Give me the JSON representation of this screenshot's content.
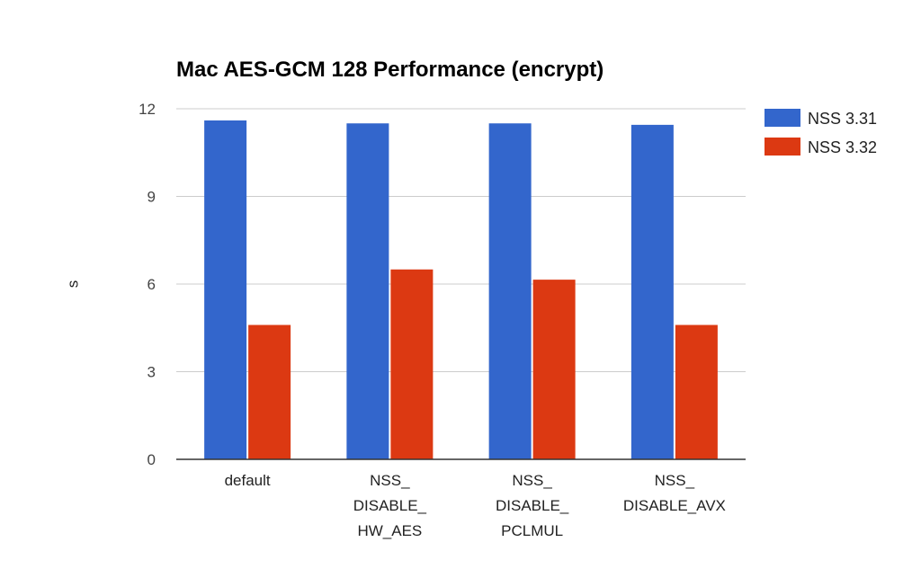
{
  "chart_data": {
    "type": "bar",
    "title": "Mac AES-GCM 128 Performance (encrypt)",
    "xlabel": "",
    "ylabel": "s",
    "ylim": [
      0,
      12
    ],
    "yticks": [
      "0",
      "3",
      "6",
      "9",
      "12"
    ],
    "grid": true,
    "legend_position": "right",
    "categories": [
      [
        "default"
      ],
      [
        "NSS_",
        "DISABLE_",
        "HW_AES"
      ],
      [
        "NSS_",
        "DISABLE_",
        "PCLMUL"
      ],
      [
        "NSS_",
        "DISABLE_AVX"
      ]
    ],
    "series": [
      {
        "name": "NSS 3.31",
        "color": "#3366cc",
        "values": [
          11.6,
          11.5,
          11.5,
          11.45
        ]
      },
      {
        "name": "NSS 3.32",
        "color": "#dc3912",
        "values": [
          4.6,
          6.5,
          6.15,
          4.6
        ]
      }
    ]
  }
}
